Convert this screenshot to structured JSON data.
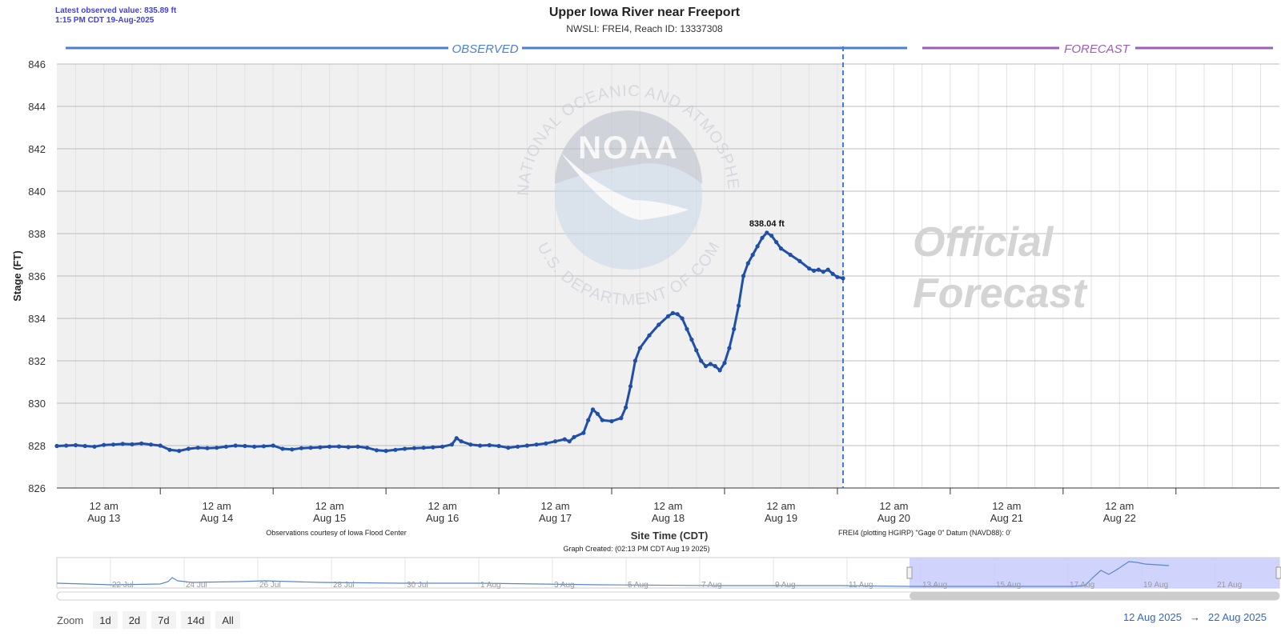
{
  "header": {
    "latest_line1": "Latest observed value: 835.89 ft",
    "latest_line2": "1:15 PM CDT 19-Aug-2025",
    "title": "Upper Iowa River near Freeport",
    "subtitle": "NWSLI: FREI4, Reach ID: 13337308"
  },
  "sections": {
    "observed_label": "OBSERVED",
    "forecast_label": "FORECAST",
    "observed_color": "#4f7fcc",
    "forecast_color": "#9a5fb6"
  },
  "watermark": {
    "logo_text": "NOAA",
    "ring_top": "NATIONAL OCEANIC AND ATMOSPHERIC ADMINISTRATION",
    "ring_bottom": "U.S. DEPARTMENT OF COMMERCE",
    "official_line1": "Official",
    "official_line2": "Forecast"
  },
  "notes": {
    "courtesy": "Observations courtesy of Iowa Flood Center",
    "datum": "FREI4 (plotting HGIRP) \"Gage 0\" Datum (NAVD88): 0'",
    "created": "Graph Created: (02:13 PM CDT Aug 19 2025)"
  },
  "chart_data": {
    "type": "line",
    "title": "Upper Iowa River near Freeport",
    "ylabel": "Stage (FT)",
    "xlabel": "Site Time (CDT)",
    "ylim": [
      826,
      846
    ],
    "yticks": [
      826,
      828,
      830,
      832,
      834,
      836,
      838,
      840,
      842,
      844,
      846
    ],
    "xlim_hours": [
      -10,
      250
    ],
    "xticks": [
      {
        "hour": 0,
        "line1": "12 am",
        "line2": "Aug 13"
      },
      {
        "hour": 24,
        "line1": "12 am",
        "line2": "Aug 14"
      },
      {
        "hour": 48,
        "line1": "12 am",
        "line2": "Aug 15"
      },
      {
        "hour": 72,
        "line1": "12 am",
        "line2": "Aug 16"
      },
      {
        "hour": 96,
        "line1": "12 am",
        "line2": "Aug 17"
      },
      {
        "hour": 120,
        "line1": "12 am",
        "line2": "Aug 18"
      },
      {
        "hour": 144,
        "line1": "12 am",
        "line2": "Aug 19"
      },
      {
        "hour": 168,
        "line1": "12 am",
        "line2": "Aug 20"
      },
      {
        "hour": 192,
        "line1": "12 am",
        "line2": "Aug 21"
      },
      {
        "hour": 216,
        "line1": "12 am",
        "line2": "Aug 22"
      }
    ],
    "now_hour": 157.2,
    "grid": true,
    "series": [
      {
        "color": "#1f4fa8",
        "points": [
          [
            -10,
            827.98
          ],
          [
            -8,
            828.0
          ],
          [
            -6,
            828.02
          ],
          [
            -4,
            827.98
          ],
          [
            -2,
            827.95
          ],
          [
            0,
            828.03
          ],
          [
            2,
            828.05
          ],
          [
            4,
            828.08
          ],
          [
            6,
            828.06
          ],
          [
            8,
            828.1
          ],
          [
            10,
            828.05
          ],
          [
            12,
            828.0
          ],
          [
            14,
            827.8
          ],
          [
            16,
            827.75
          ],
          [
            18,
            827.85
          ],
          [
            20,
            827.9
          ],
          [
            22,
            827.88
          ],
          [
            24,
            827.9
          ],
          [
            26,
            827.95
          ],
          [
            28,
            828.0
          ],
          [
            30,
            827.98
          ],
          [
            32,
            827.95
          ],
          [
            34,
            827.97
          ],
          [
            36,
            828.0
          ],
          [
            38,
            827.85
          ],
          [
            40,
            827.82
          ],
          [
            42,
            827.88
          ],
          [
            44,
            827.9
          ],
          [
            46,
            827.92
          ],
          [
            48,
            827.95
          ],
          [
            50,
            827.96
          ],
          [
            52,
            827.93
          ],
          [
            54,
            827.95
          ],
          [
            56,
            827.9
          ],
          [
            58,
            827.78
          ],
          [
            60,
            827.75
          ],
          [
            62,
            827.8
          ],
          [
            64,
            827.85
          ],
          [
            66,
            827.88
          ],
          [
            68,
            827.9
          ],
          [
            70,
            827.92
          ],
          [
            72,
            827.95
          ],
          [
            74,
            828.05
          ],
          [
            75,
            828.35
          ],
          [
            76,
            828.2
          ],
          [
            78,
            828.05
          ],
          [
            80,
            828.0
          ],
          [
            82,
            828.02
          ],
          [
            84,
            827.98
          ],
          [
            86,
            827.9
          ],
          [
            88,
            827.95
          ],
          [
            90,
            828.0
          ],
          [
            92,
            828.05
          ],
          [
            94,
            828.1
          ],
          [
            96,
            828.2
          ],
          [
            98,
            828.3
          ],
          [
            99,
            828.2
          ],
          [
            100,
            828.4
          ],
          [
            102,
            828.6
          ],
          [
            103,
            829.2
          ],
          [
            104,
            829.7
          ],
          [
            105,
            829.5
          ],
          [
            106,
            829.2
          ],
          [
            108,
            829.15
          ],
          [
            110,
            829.3
          ],
          [
            111,
            829.8
          ],
          [
            112,
            830.8
          ],
          [
            113,
            832.0
          ],
          [
            114,
            832.6
          ],
          [
            116,
            833.2
          ],
          [
            118,
            833.7
          ],
          [
            120,
            834.1
          ],
          [
            121,
            834.25
          ],
          [
            122,
            834.2
          ],
          [
            123,
            834.0
          ],
          [
            124,
            833.5
          ],
          [
            125,
            833.0
          ],
          [
            126,
            832.5
          ],
          [
            127,
            832.0
          ],
          [
            128,
            831.75
          ],
          [
            129,
            831.85
          ],
          [
            130,
            831.75
          ],
          [
            131,
            831.55
          ],
          [
            132,
            831.9
          ],
          [
            133,
            832.6
          ],
          [
            134,
            833.5
          ],
          [
            135,
            834.6
          ],
          [
            136,
            836.0
          ],
          [
            137,
            836.6
          ],
          [
            138,
            837.0
          ],
          [
            139,
            837.4
          ],
          [
            140,
            837.8
          ],
          [
            141,
            838.04
          ],
          [
            142,
            837.9
          ],
          [
            143,
            837.6
          ],
          [
            144,
            837.3
          ],
          [
            146,
            837.0
          ],
          [
            148,
            836.7
          ],
          [
            150,
            836.35
          ],
          [
            151,
            836.25
          ],
          [
            152,
            836.3
          ],
          [
            153,
            836.2
          ],
          [
            154,
            836.3
          ],
          [
            155,
            836.1
          ],
          [
            156,
            835.95
          ],
          [
            157.2,
            835.89
          ]
        ]
      }
    ],
    "annotations": [
      {
        "text": "838.04 ft",
        "x_hour": 141,
        "y": 838.04
      }
    ]
  },
  "navigator": {
    "labels": [
      "22 Jul",
      "24 Jul",
      "26 Jul",
      "28 Jul",
      "30 Jul",
      "1 Aug",
      "3 Aug",
      "5 Aug",
      "7 Aug",
      "9 Aug",
      "11 Aug",
      "13 Aug",
      "15 Aug",
      "17 Aug",
      "19 Aug",
      "21 Aug"
    ],
    "selection_color": "#c8cdfc"
  },
  "zoom": {
    "label": "Zoom",
    "buttons": [
      "1d",
      "2d",
      "7d",
      "14d",
      "All"
    ]
  },
  "range": {
    "from": "12 Aug 2025",
    "arrow": "→",
    "to": "22 Aug 2025"
  }
}
